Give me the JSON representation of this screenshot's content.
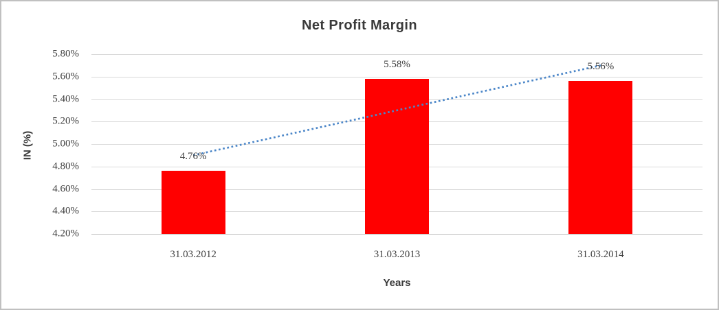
{
  "chart_data": {
    "type": "bar",
    "title": "Net Profit Margin",
    "xlabel": "Years",
    "ylabel": "IN (%)",
    "categories": [
      "31.03.2012",
      "31.03.2013",
      "31.03.2014"
    ],
    "values": [
      4.76,
      5.58,
      5.56
    ],
    "data_labels": [
      "4.76%",
      "5.58%",
      "5.56%"
    ],
    "ylim": [
      4.2,
      5.8
    ],
    "ytick_values": [
      5.8,
      5.6,
      5.4,
      5.2,
      5.0,
      4.8,
      4.6,
      4.4,
      4.2
    ],
    "ytick_labels": [
      "5.80%",
      "5.60%",
      "5.40%",
      "5.20%",
      "5.00%",
      "4.80%",
      "4.60%",
      "4.40%",
      "4.20%"
    ],
    "grid": true,
    "legend": false,
    "trendline": {
      "type": "linear",
      "style": "dotted",
      "start_value": 4.9,
      "end_value": 5.7,
      "color": "#4B86C8"
    },
    "colors": {
      "bar": "#FF0000",
      "gridline": "#D9D9D9",
      "axis_line": "#BFBFBF",
      "tick_text": "#404040",
      "title_text": "#3A3A3A",
      "background": "#FFFFFF",
      "border": "#C0C0C0"
    }
  }
}
